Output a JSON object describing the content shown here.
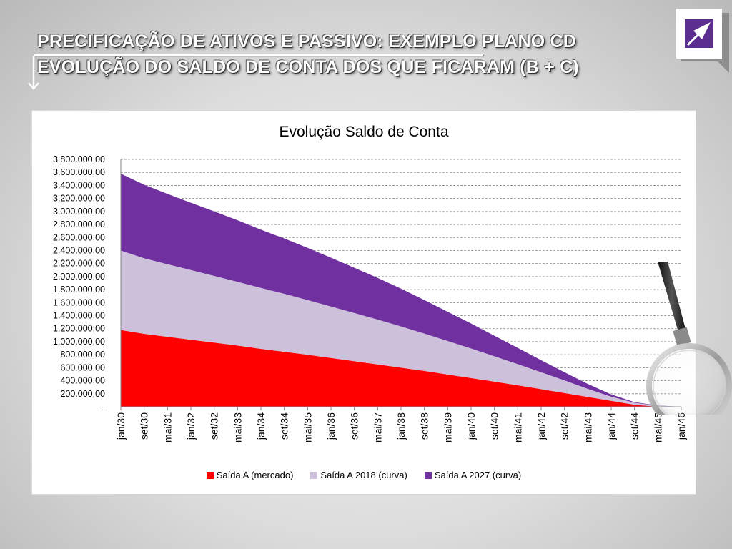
{
  "slide": {
    "title_line1": "PRECIFICAÇÃO DE ATIVOS E PASSIVO:  EXEMPLO PLANO CD",
    "title_line2": "EVOLUÇÃO DO SALDO DE CONTA DOS QUE FICARAM (B + C)"
  },
  "colors": {
    "series_a": "#ff0000",
    "series_b": "#ccc0da",
    "series_c": "#7030a0",
    "grid": "#868686",
    "logo": "#5b2d8e"
  },
  "icons": {
    "logo": "logo-icon",
    "arrow": "bullet-arrow-icon",
    "magnifier": "magnifying-glass-icon"
  },
  "chart_data": {
    "type": "area",
    "stacked": true,
    "title": "Evolução Saldo de Conta",
    "xlabel": "",
    "ylabel": "",
    "ylim": [
      0,
      3800000
    ],
    "grid": true,
    "legend_position": "bottom",
    "y_ticks": [
      0,
      200000,
      400000,
      600000,
      800000,
      1000000,
      1200000,
      1400000,
      1600000,
      1800000,
      2000000,
      2200000,
      2400000,
      2600000,
      2800000,
      3000000,
      3200000,
      3400000,
      3600000,
      3800000
    ],
    "y_tick_labels": [
      "-",
      "200.000,00",
      "400.000,00",
      "600.000,00",
      "800.000,00",
      "1.000.000,00",
      "1.200.000,00",
      "1.400.000,00",
      "1.600.000,00",
      "1.800.000,00",
      "2.000.000,00",
      "2.200.000,00",
      "2.400.000,00",
      "2.600.000,00",
      "2.800.000,00",
      "3.000.000,00",
      "3.200.000,00",
      "3.400.000,00",
      "3.600.000,00",
      "3.800.000,00"
    ],
    "categories": [
      "jan/30",
      "set/30",
      "mai/31",
      "jan/32",
      "set/32",
      "mai/33",
      "jan/34",
      "set/34",
      "mai/35",
      "jan/36",
      "set/36",
      "mai/37",
      "jan/38",
      "set/38",
      "mai/39",
      "jan/40",
      "set/40",
      "mai/41",
      "jan/42",
      "set/42",
      "mai/43",
      "jan/44",
      "set/44",
      "mai/45",
      "jan/46"
    ],
    "series": [
      {
        "name": "Saída A (mercado)",
        "values": [
          1180000,
          1120000,
          1075000,
          1030000,
          985000,
          940000,
          890000,
          845000,
          800000,
          750000,
          700000,
          650000,
          600000,
          550000,
          495000,
          440000,
          385000,
          330000,
          270000,
          210000,
          150000,
          90000,
          30000,
          0,
          0
        ]
      },
      {
        "name": "Saída A 2018 (curva)",
        "values": [
          1220000,
          1160000,
          1115000,
          1070000,
          1025000,
          980000,
          935000,
          890000,
          840000,
          790000,
          740000,
          690000,
          635000,
          575000,
          515000,
          455000,
          390000,
          325000,
          260000,
          195000,
          125000,
          65000,
          30000,
          15000,
          0
        ]
      },
      {
        "name": "Saída A 2027 (curva)",
        "values": [
          1180000,
          1130000,
          1080000,
          1035000,
          990000,
          945000,
          895000,
          850000,
          800000,
          750000,
          695000,
          640000,
          580000,
          515000,
          450000,
          385000,
          315000,
          250000,
          185000,
          125000,
          75000,
          35000,
          10000,
          5000,
          0
        ]
      }
    ]
  }
}
